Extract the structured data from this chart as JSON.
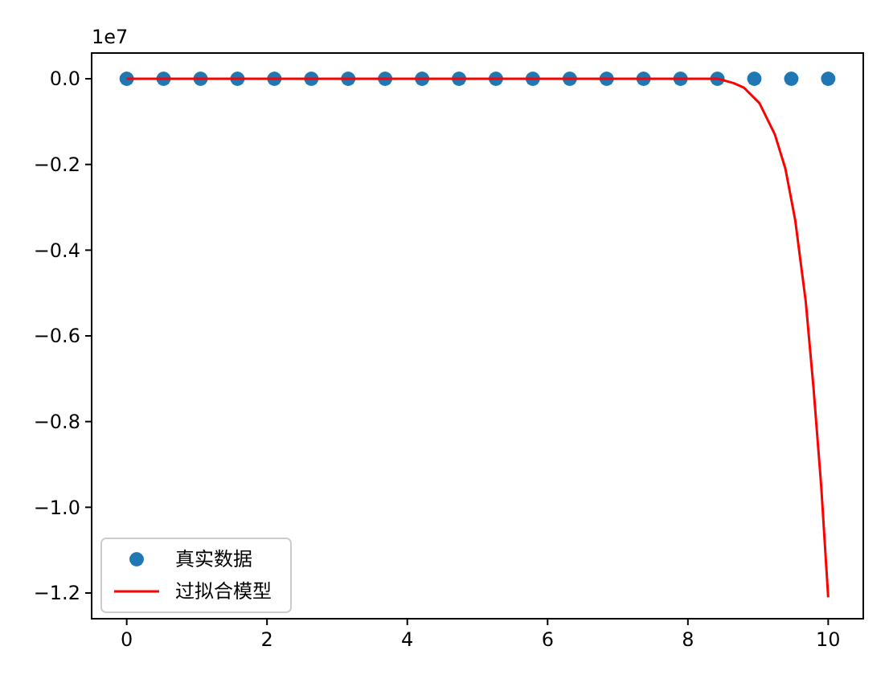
{
  "chart_data": {
    "type": "scatter",
    "annotations": [
      "1e7"
    ],
    "xlim": [
      -0.5,
      10.5
    ],
    "xticks": [
      0,
      2,
      4,
      6,
      8,
      10
    ],
    "ylim": [
      -1.26,
      0.06
    ],
    "yticks": [
      {
        "value": 0,
        "label": "0.0"
      },
      {
        "value": -0.2,
        "label": "−0.2"
      },
      {
        "value": -0.4,
        "label": "−0.4"
      },
      {
        "value": -0.6,
        "label": "−0.6"
      },
      {
        "value": -0.8,
        "label": "−0.8"
      },
      {
        "value": -1,
        "label": "−1.0"
      },
      {
        "value": -1.2,
        "label": "−1.2"
      }
    ],
    "legend": "bottom left",
    "grid": false,
    "series": [
      {
        "name": "真实数据",
        "color": "#1f77b4",
        "marker": "circle",
        "x": [
          0,
          0.526,
          1.053,
          1.579,
          2.105,
          2.632,
          3.158,
          3.684,
          4.211,
          4.737,
          5.263,
          5.789,
          6.316,
          6.842,
          7.368,
          7.895,
          8.421,
          8.947,
          9.474,
          10
        ],
        "values": [
          0,
          0,
          0,
          0,
          0,
          0,
          0,
          0,
          0,
          0,
          0,
          0,
          0,
          0,
          0,
          0,
          0,
          0,
          0,
          0
        ]
      },
      {
        "name": "过拟合模型",
        "type": "line",
        "color": "#ff0000",
        "line_style": "solid",
        "x": [
          0,
          2,
          4,
          6,
          8,
          8.43,
          8.65,
          8.8,
          9.02,
          9.24,
          9.39,
          9.53,
          9.68,
          9.79,
          9.9,
          10
        ],
        "values": [
          0,
          0,
          0,
          0,
          0,
          0,
          -0.01,
          -0.021,
          -0.057,
          -0.13,
          -0.21,
          -0.33,
          -0.52,
          -0.72,
          -0.95,
          -1.21
        ]
      }
    ]
  }
}
